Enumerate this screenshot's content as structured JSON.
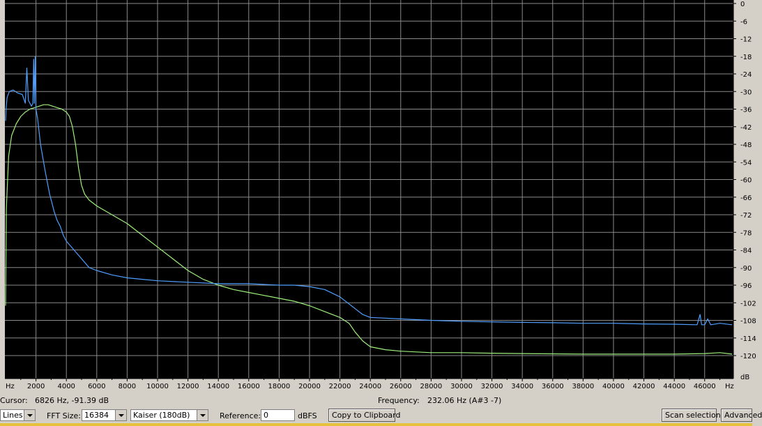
{
  "chart_data": {
    "type": "line",
    "xlim": [
      0,
      47800
    ],
    "ylim": [
      -124,
      0
    ],
    "grid": true,
    "x_ticks": [
      2000,
      4000,
      6000,
      8000,
      10000,
      12000,
      14000,
      16000,
      18000,
      20000,
      22000,
      24000,
      26000,
      28000,
      30000,
      32000,
      34000,
      36000,
      38000,
      40000,
      42000,
      44000,
      46000
    ],
    "x_tick_labels": [
      "2000",
      "4000",
      "6000",
      "8000",
      "10000",
      "12000",
      "14000",
      "16000",
      "18000",
      "20000",
      "22000",
      "24000",
      "26000",
      "28000",
      "30000",
      "32000",
      "34000",
      "36000",
      "38000",
      "40000",
      "42000",
      "44000",
      "46000"
    ],
    "x_unit_left": "Hz",
    "x_unit_right": "Hz",
    "y_ticks": [
      0,
      -6,
      -12,
      -18,
      -24,
      -30,
      -36,
      -42,
      -48,
      -54,
      -60,
      -66,
      -72,
      -78,
      -84,
      -90,
      -96,
      -102,
      -108,
      -114,
      -120
    ],
    "y_tick_labels": [
      "0",
      "-6",
      "-12",
      "-18",
      "-24",
      "-30",
      "-36",
      "-42",
      "-48",
      "-54",
      "-60",
      "-66",
      "-72",
      "-78",
      "-84",
      "-90",
      "-96",
      "-102",
      "-108",
      "-114",
      "-120"
    ],
    "y_unit": "dB",
    "series": [
      {
        "color": "#9ef07a",
        "x": [
          0,
          50,
          200,
          400,
          700,
          1000,
          1300,
          1600,
          1900,
          2200,
          2500,
          2800,
          3100,
          3400,
          3700,
          4000,
          4200,
          4400,
          4600,
          4800,
          5000,
          5200,
          5500,
          6000,
          7000,
          8000,
          9000,
          10000,
          11000,
          12000,
          13000,
          14000,
          15000,
          16000,
          17000,
          18000,
          19000,
          20000,
          21000,
          22000,
          22600,
          23000,
          23500,
          24000,
          25000,
          26000,
          28000,
          30000,
          32000,
          34000,
          36000,
          38000,
          40000,
          42000,
          44000,
          46000,
          47000,
          47800
        ],
        "y": [
          -103,
          -70,
          -52,
          -45,
          -41,
          -38.5,
          -37,
          -36,
          -35.5,
          -35,
          -34.5,
          -34.5,
          -35,
          -35.5,
          -36,
          -37,
          -38.5,
          -42,
          -48,
          -56,
          -62,
          -65,
          -67,
          -69,
          -72,
          -75,
          -79,
          -83,
          -87,
          -91,
          -94,
          -96,
          -97.5,
          -98.5,
          -99.5,
          -100.5,
          -101.5,
          -103,
          -105,
          -107,
          -109,
          -112,
          -115,
          -117,
          -118,
          -118.5,
          -119,
          -119,
          -119.2,
          -119.3,
          -119.4,
          -119.5,
          -119.5,
          -119.5,
          -119.5,
          -119.3,
          -119,
          -119.5
        ]
      },
      {
        "color": "#4f9fff",
        "x": [
          0,
          30,
          100,
          250,
          500,
          800,
          1100,
          1300,
          1400,
          1500,
          1600,
          1700,
          1800,
          1850,
          1900,
          1950,
          2000,
          2100,
          2300,
          2600,
          2900,
          3200,
          3400,
          3600,
          3800,
          4000,
          4500,
          5000,
          5500,
          6000,
          7000,
          8000,
          9000,
          10000,
          12000,
          14000,
          16000,
          18000,
          19000,
          20000,
          21000,
          22000,
          23000,
          23500,
          24000,
          26000,
          28000,
          30000,
          32000,
          34000,
          36000,
          38000,
          40000,
          42000,
          44000,
          45500,
          45700,
          45800,
          46000,
          46200,
          46400,
          47000,
          47800
        ],
        "y": [
          -40,
          -36,
          -32,
          -30,
          -29.5,
          -30.5,
          -31,
          -34,
          -22,
          -33,
          -34,
          -35,
          -34,
          -19,
          -34,
          -18,
          -36,
          -39,
          -48,
          -57,
          -65,
          -71,
          -74,
          -76,
          -79,
          -81,
          -84,
          -87,
          -90,
          -91,
          -92.5,
          -93.5,
          -94,
          -94.5,
          -95,
          -95.5,
          -95.5,
          -96,
          -96,
          -96.5,
          -97.5,
          -100,
          -104,
          -106,
          -107,
          -107.5,
          -108,
          -108.3,
          -108.5,
          -108.7,
          -108.8,
          -109,
          -109,
          -109.2,
          -109.3,
          -109.5,
          -106,
          -109.5,
          -109.5,
          -107.5,
          -109.5,
          -109,
          -109.5
        ]
      }
    ]
  },
  "status": {
    "cursor_label": "Cursor:",
    "cursor_value": "6826 Hz, -91.39 dB",
    "frequency_label": "Frequency:",
    "frequency_value": "232.06 Hz (A#3 -7)"
  },
  "controls": {
    "algorithm_value": "Lines",
    "fft_size_label": "FFT Size:",
    "fft_size_value": "16384",
    "window_value": "Kaiser (180dB)",
    "reference_label": "Reference:",
    "reference_value": "0",
    "reference_unit": "dBFS",
    "copy_button": "Copy to Clipboard",
    "scan_button": "Scan selection",
    "advanced_button": "Advanced"
  },
  "colors": {
    "plot_background": "#000000",
    "grid": "#8a8a8a",
    "axis_background": "#d4d0c8",
    "series_green": "#9ef07a",
    "series_blue": "#4f9fff"
  }
}
